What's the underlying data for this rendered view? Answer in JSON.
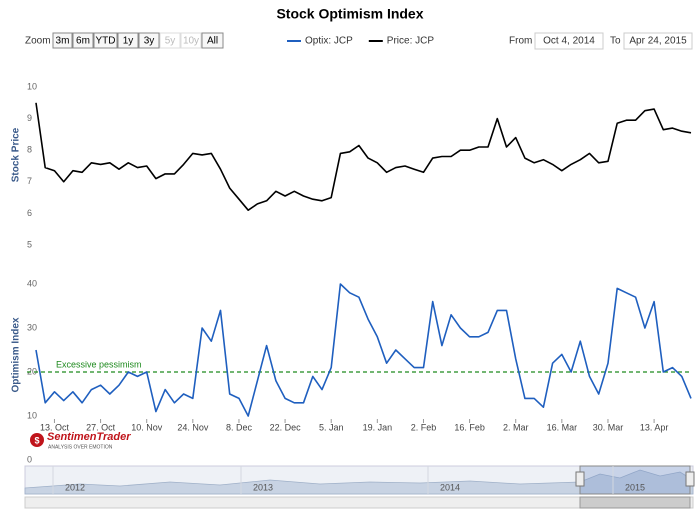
{
  "toolbar": {
    "zoom_label": "Zoom",
    "buttons": [
      {
        "label": "3m",
        "enabled": true
      },
      {
        "label": "6m",
        "enabled": true
      },
      {
        "label": "YTD",
        "enabled": true
      },
      {
        "label": "1y",
        "enabled": true
      },
      {
        "label": "3y",
        "enabled": true
      },
      {
        "label": "5y",
        "enabled": false
      },
      {
        "label": "10y",
        "enabled": false
      },
      {
        "label": "All",
        "enabled": true
      }
    ],
    "from_label": "From",
    "from": "Oct 4, 2014",
    "to_label": "To",
    "to": "Apr 24, 2015"
  },
  "chart_data": {
    "type": "line",
    "title": "Stock Optimism Index",
    "legend": "top",
    "grid": false,
    "categories": [
      null,
      null,
      "13. Oct",
      null,
      null,
      null,
      null,
      "27. Oct",
      null,
      null,
      null,
      null,
      "10. Nov",
      null,
      null,
      null,
      null,
      "24. Nov",
      null,
      null,
      null,
      null,
      "8. Dec",
      null,
      null,
      null,
      null,
      "22. Dec",
      null,
      null,
      null,
      null,
      "5. Jan",
      null,
      null,
      null,
      null,
      "19. Jan",
      null,
      null,
      null,
      null,
      "2. Feb",
      null,
      null,
      null,
      null,
      "16. Feb",
      null,
      null,
      null,
      null,
      "2. Mar",
      null,
      null,
      null,
      null,
      "16. Mar",
      null,
      null,
      null,
      null,
      "30. Mar",
      null,
      null,
      null,
      null,
      "13. Apr",
      null,
      null,
      null,
      null
    ],
    "series": [
      {
        "name": "Optix: JCP",
        "color": "#1f5fbf",
        "axis": "y2",
        "values": [
          25,
          13,
          15.5,
          13.5,
          15.5,
          13,
          16,
          17,
          15,
          17,
          20,
          19,
          20,
          11,
          16,
          13,
          15,
          14,
          30,
          27,
          34,
          15,
          14,
          10,
          18,
          26,
          18,
          14,
          13,
          13,
          19,
          16,
          21,
          40,
          38,
          37,
          32,
          28,
          22,
          25,
          23,
          21,
          21,
          36,
          26,
          33,
          30,
          28,
          28,
          29,
          34,
          34,
          23,
          14,
          14,
          12,
          22,
          24,
          20,
          27,
          19,
          15,
          22,
          39,
          38,
          37,
          30,
          36,
          20,
          21,
          19,
          14
        ]
      },
      {
        "name": "Price: JCP",
        "color": "#000000",
        "values": [
          9.5,
          7.45,
          7.35,
          7.0,
          7.35,
          7.3,
          7.6,
          7.55,
          7.6,
          7.4,
          7.6,
          7.45,
          7.5,
          7.1,
          7.25,
          7.25,
          7.55,
          7.9,
          7.85,
          7.9,
          7.4,
          6.8,
          6.45,
          6.1,
          6.3,
          6.4,
          6.7,
          6.55,
          6.7,
          6.55,
          6.45,
          6.4,
          6.5,
          7.9,
          7.95,
          8.15,
          7.75,
          7.6,
          7.3,
          7.45,
          7.5,
          7.4,
          7.3,
          7.75,
          7.8,
          7.8,
          8.0,
          8.0,
          8.1,
          8.1,
          9.0,
          8.1,
          8.4,
          7.75,
          7.6,
          7.7,
          7.55,
          7.35,
          7.55,
          7.7,
          7.9,
          7.6,
          7.65,
          8.85,
          8.95,
          8.95,
          9.25,
          9.3,
          8.65,
          8.7,
          8.6,
          8.55
        ]
      }
    ],
    "y_label": "Stock Price",
    "ylim": [
      5,
      10
    ],
    "yticks": [
      5,
      6,
      7,
      8,
      9,
      10
    ],
    "y2_label": "Optimism Index",
    "y2lim": [
      0,
      40
    ],
    "y2ticks": [
      0,
      10,
      20,
      30,
      40
    ],
    "threshold": {
      "value": 20,
      "label": "Excessive pessimism",
      "color": "#1e8a1e",
      "axis": "y2"
    }
  },
  "navigator": {
    "labels": [
      "2012",
      "2013",
      "2014",
      "2015"
    ]
  },
  "logo": {
    "name": "SentimenTrader",
    "tagline": "ANALYSIS OVER EMOTION"
  }
}
